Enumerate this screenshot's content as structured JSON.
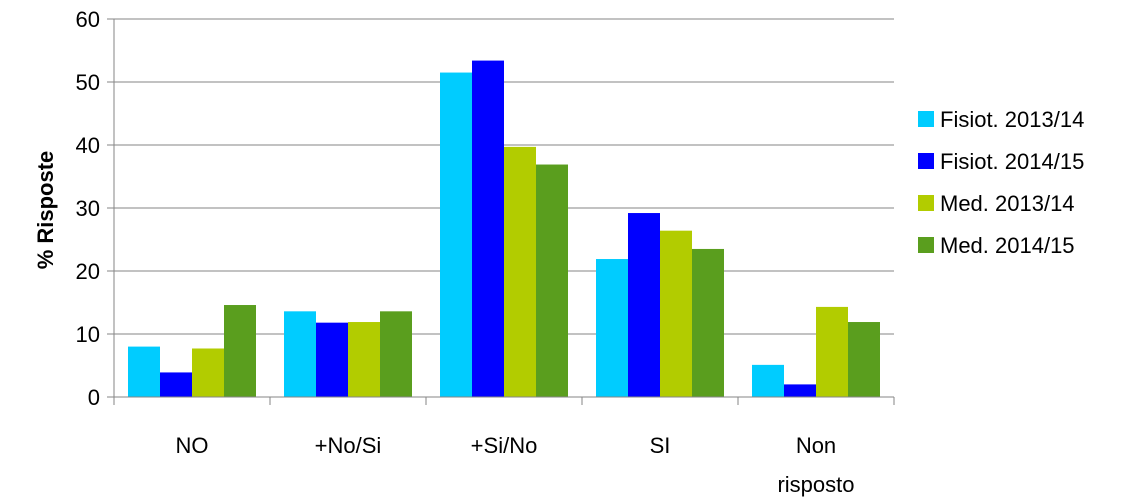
{
  "chart_data": {
    "type": "bar",
    "title": "",
    "xlabel": "",
    "ylabel": "% Risposte",
    "ylim": [
      0,
      60
    ],
    "yticks": [
      0,
      10,
      20,
      30,
      40,
      50,
      60
    ],
    "grid": true,
    "legend_position": "right",
    "categories": [
      "NO",
      "+No/Si",
      "+Si/No",
      "SI",
      "Non risposto"
    ],
    "category_lines": [
      [
        "NO"
      ],
      [
        "+No/Si"
      ],
      [
        "+Si/No"
      ],
      [
        "SI"
      ],
      [
        "Non",
        "risposto"
      ]
    ],
    "series": [
      {
        "name": "Fisiot. 2013/14",
        "color": "#00CCFF",
        "values": [
          8.0,
          13.6,
          51.5,
          21.9,
          5.1
        ]
      },
      {
        "name": "Fisiot. 2014/15",
        "color": "#0000FF",
        "values": [
          3.9,
          11.8,
          53.4,
          29.2,
          2.0
        ]
      },
      {
        "name": "Med. 2013/14",
        "color": "#B2CC00",
        "values": [
          7.7,
          11.9,
          39.7,
          26.4,
          14.3
        ]
      },
      {
        "name": "Med. 2014/15",
        "color": "#5A9E1E",
        "values": [
          14.6,
          13.6,
          36.9,
          23.5,
          11.9
        ]
      }
    ]
  }
}
